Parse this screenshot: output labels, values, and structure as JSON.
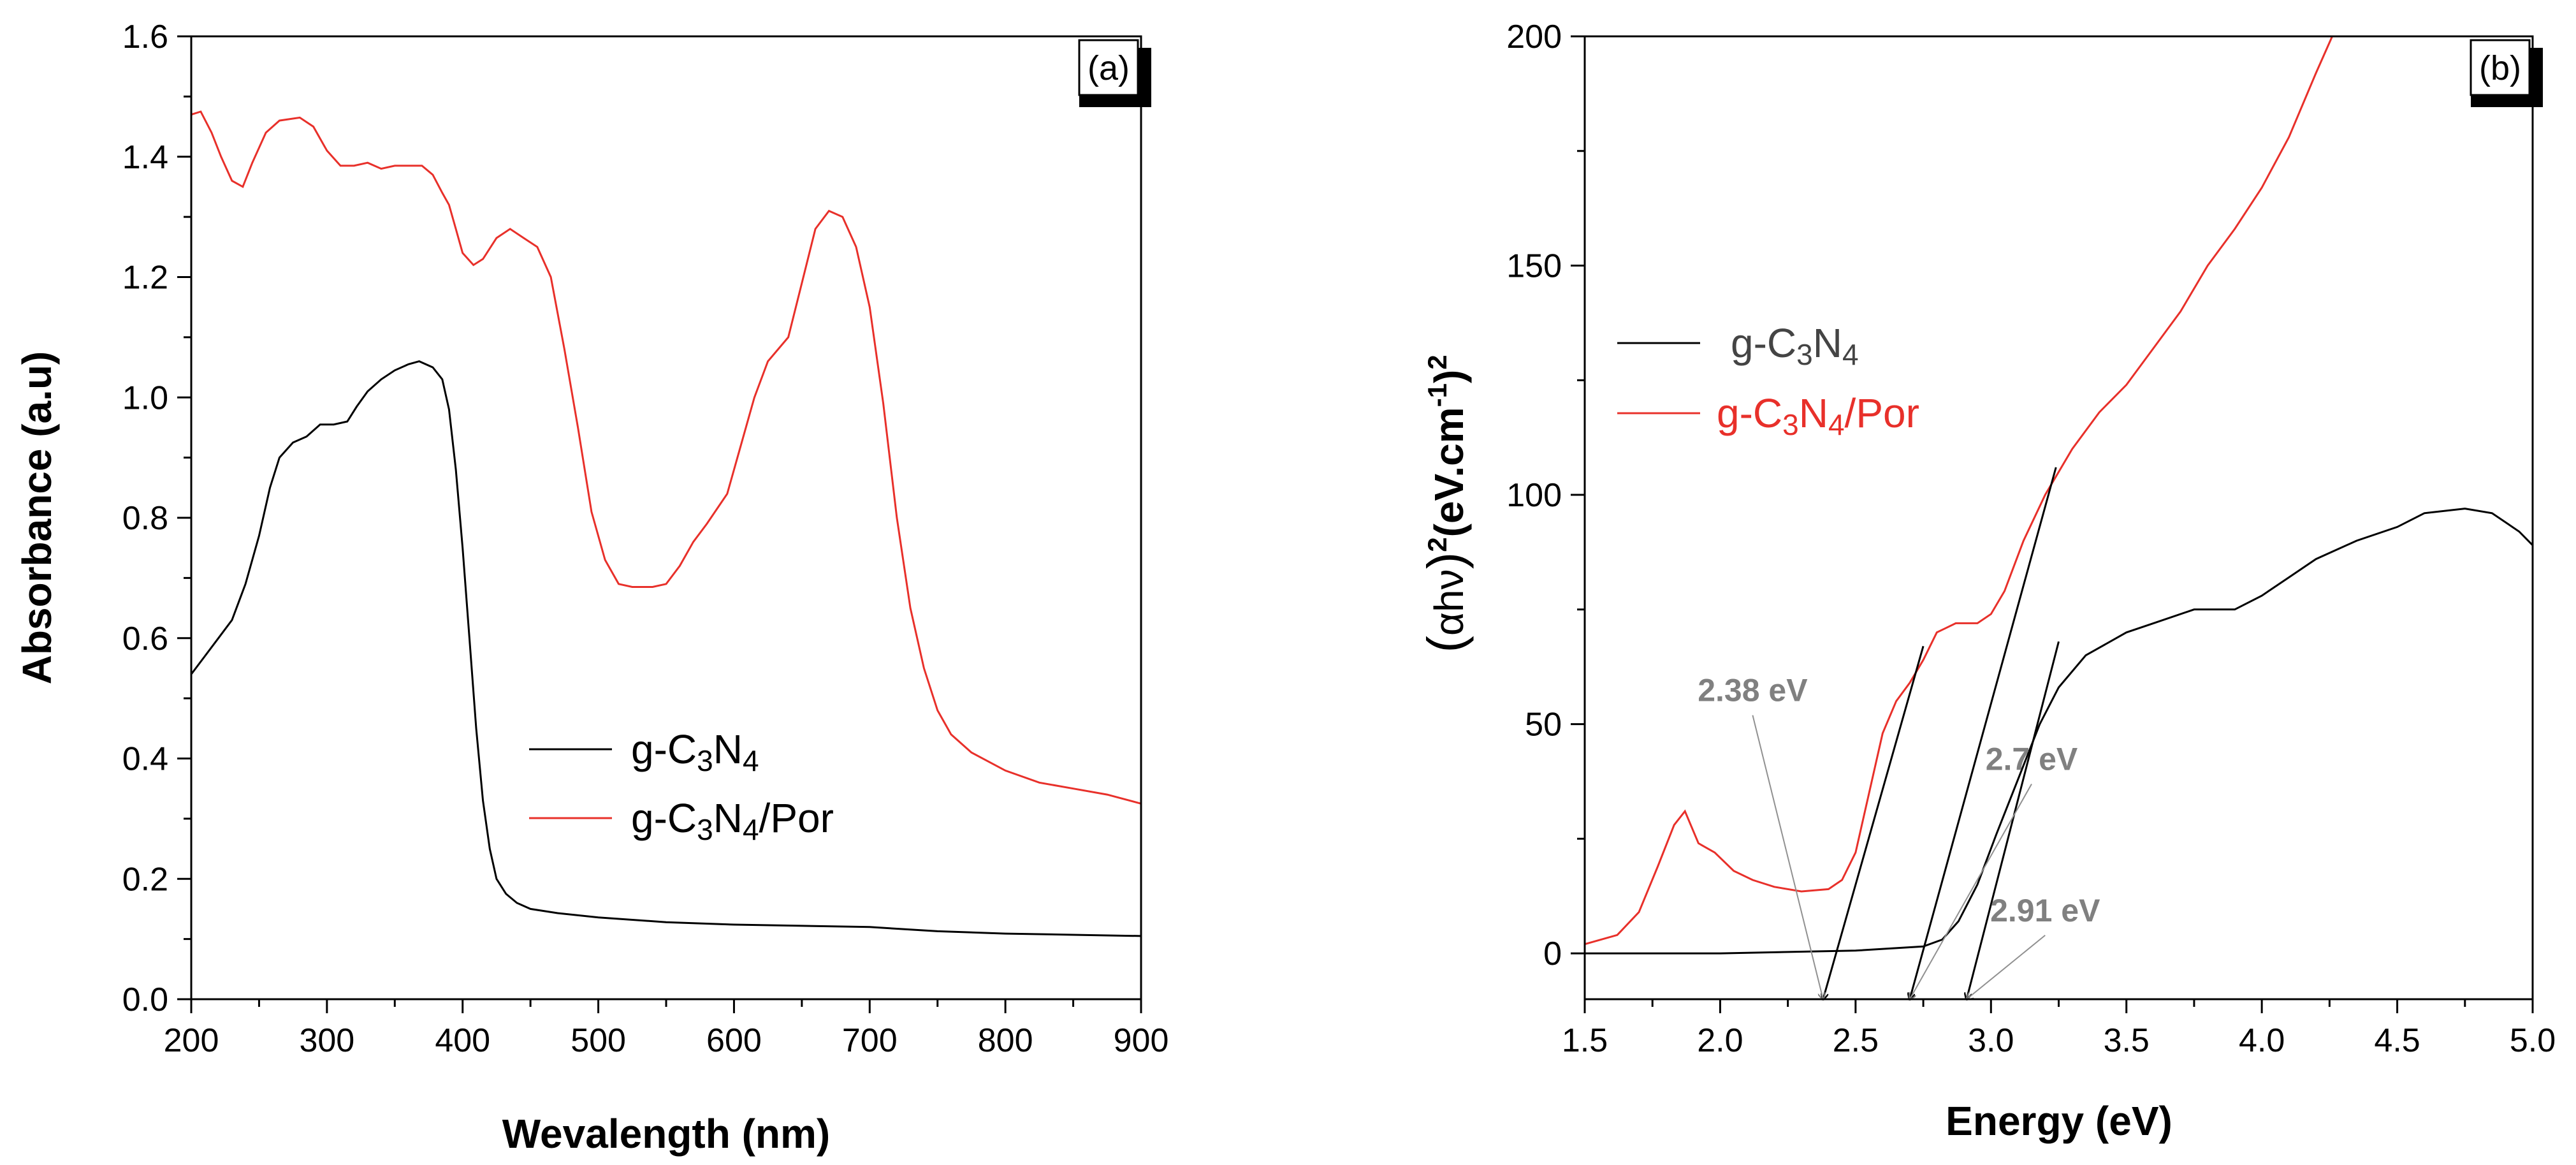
{
  "chart_data": [
    {
      "type": "line",
      "panel_label": "(a)",
      "title": "",
      "xlabel": "Wevalength (nm)",
      "ylabel": "Absorbance (a.u)",
      "xlim": [
        200,
        900
      ],
      "ylim": [
        0.0,
        1.6
      ],
      "x_ticks": [
        200,
        300,
        400,
        500,
        600,
        700,
        800,
        900
      ],
      "y_ticks": [
        0.0,
        0.2,
        0.4,
        0.6,
        0.8,
        1.0,
        1.2,
        1.4,
        1.6
      ],
      "x_tick_labels": [
        "200",
        "300",
        "400",
        "500",
        "600",
        "700",
        "800",
        "900"
      ],
      "y_tick_labels": [
        "0.0",
        "0.2",
        "0.4",
        "0.6",
        "0.8",
        "1.0",
        "1.2",
        "1.4",
        "1.6"
      ],
      "grid": false,
      "legend_position": "center-right",
      "series": [
        {
          "name": "g-C3N4",
          "legend_parts": [
            "g-C",
            "3",
            "N",
            "4",
            ""
          ],
          "color": "#000000",
          "points": [
            [
              200,
              0.54
            ],
            [
              210,
              0.57
            ],
            [
              220,
              0.6
            ],
            [
              230,
              0.63
            ],
            [
              240,
              0.69
            ],
            [
              250,
              0.77
            ],
            [
              258,
              0.85
            ],
            [
              265,
              0.9
            ],
            [
              275,
              0.925
            ],
            [
              285,
              0.935
            ],
            [
              295,
              0.955
            ],
            [
              305,
              0.955
            ],
            [
              315,
              0.96
            ],
            [
              322,
              0.985
            ],
            [
              330,
              1.01
            ],
            [
              340,
              1.03
            ],
            [
              350,
              1.045
            ],
            [
              360,
              1.055
            ],
            [
              368,
              1.06
            ],
            [
              378,
              1.05
            ],
            [
              385,
              1.03
            ],
            [
              390,
              0.98
            ],
            [
              395,
              0.88
            ],
            [
              400,
              0.75
            ],
            [
              405,
              0.6
            ],
            [
              410,
              0.45
            ],
            [
              415,
              0.33
            ],
            [
              420,
              0.25
            ],
            [
              425,
              0.2
            ],
            [
              432,
              0.175
            ],
            [
              440,
              0.16
            ],
            [
              450,
              0.15
            ],
            [
              470,
              0.143
            ],
            [
              500,
              0.136
            ],
            [
              550,
              0.128
            ],
            [
              600,
              0.124
            ],
            [
              650,
              0.122
            ],
            [
              700,
              0.12
            ],
            [
              750,
              0.113
            ],
            [
              800,
              0.109
            ],
            [
              850,
              0.107
            ],
            [
              900,
              0.105
            ]
          ]
        },
        {
          "name": "g-C3N4/Por",
          "legend_parts": [
            "g-C",
            "3",
            "N",
            "4",
            "/Por"
          ],
          "color": "#e8302a",
          "points": [
            [
              200,
              1.47
            ],
            [
              207,
              1.475
            ],
            [
              215,
              1.44
            ],
            [
              222,
              1.4
            ],
            [
              230,
              1.36
            ],
            [
              238,
              1.35
            ],
            [
              245,
              1.39
            ],
            [
              255,
              1.44
            ],
            [
              265,
              1.46
            ],
            [
              280,
              1.465
            ],
            [
              290,
              1.45
            ],
            [
              300,
              1.41
            ],
            [
              310,
              1.385
            ],
            [
              320,
              1.385
            ],
            [
              330,
              1.39
            ],
            [
              340,
              1.38
            ],
            [
              350,
              1.385
            ],
            [
              360,
              1.385
            ],
            [
              370,
              1.385
            ],
            [
              378,
              1.37
            ],
            [
              385,
              1.34
            ],
            [
              390,
              1.32
            ],
            [
              395,
              1.28
            ],
            [
              400,
              1.24
            ],
            [
              408,
              1.22
            ],
            [
              415,
              1.23
            ],
            [
              425,
              1.265
            ],
            [
              435,
              1.28
            ],
            [
              445,
              1.265
            ],
            [
              455,
              1.25
            ],
            [
              465,
              1.2
            ],
            [
              475,
              1.08
            ],
            [
              485,
              0.95
            ],
            [
              495,
              0.81
            ],
            [
              505,
              0.73
            ],
            [
              515,
              0.69
            ],
            [
              525,
              0.685
            ],
            [
              540,
              0.685
            ],
            [
              550,
              0.69
            ],
            [
              560,
              0.72
            ],
            [
              570,
              0.76
            ],
            [
              580,
              0.79
            ],
            [
              595,
              0.84
            ],
            [
              605,
              0.92
            ],
            [
              615,
              1.0
            ],
            [
              625,
              1.06
            ],
            [
              640,
              1.1
            ],
            [
              650,
              1.19
            ],
            [
              660,
              1.28
            ],
            [
              670,
              1.31
            ],
            [
              680,
              1.3
            ],
            [
              690,
              1.25
            ],
            [
              700,
              1.15
            ],
            [
              710,
              0.99
            ],
            [
              720,
              0.8
            ],
            [
              730,
              0.65
            ],
            [
              740,
              0.55
            ],
            [
              750,
              0.48
            ],
            [
              760,
              0.44
            ],
            [
              775,
              0.41
            ],
            [
              800,
              0.38
            ],
            [
              825,
              0.36
            ],
            [
              850,
              0.35
            ],
            [
              875,
              0.34
            ],
            [
              900,
              0.325
            ]
          ]
        }
      ]
    },
    {
      "type": "line",
      "panel_label": "(b)",
      "title": "",
      "xlabel": "Energy (eV)",
      "ylabel_parts": [
        "(",
        "αhν",
        ")",
        "2",
        "(eV.cm",
        "-1",
        ")",
        "2"
      ],
      "xlim": [
        1.5,
        5.0
      ],
      "ylim": [
        -10,
        200
      ],
      "x_ticks": [
        1.5,
        2.0,
        2.5,
        3.0,
        3.5,
        4.0,
        4.5,
        5.0
      ],
      "y_ticks": [
        0,
        50,
        100,
        150,
        200
      ],
      "x_tick_labels": [
        "1.5",
        "2.0",
        "2.5",
        "3.0",
        "3.5",
        "4.0",
        "4.5",
        "5.0"
      ],
      "y_tick_labels": [
        "0",
        "50",
        "100",
        "150",
        "200"
      ],
      "grid": false,
      "legend_position": "upper-left",
      "series": [
        {
          "name": "g-C3N4",
          "legend_parts": [
            "g-C",
            "3",
            "N",
            "4",
            ""
          ],
          "color": "#000000",
          "points": [
            [
              1.5,
              0.0
            ],
            [
              2.0,
              0.0
            ],
            [
              2.5,
              0.6
            ],
            [
              2.75,
              1.5
            ],
            [
              2.82,
              3.0
            ],
            [
              2.88,
              7.0
            ],
            [
              2.95,
              15.0
            ],
            [
              3.02,
              26.0
            ],
            [
              3.1,
              38.0
            ],
            [
              3.18,
              50.0
            ],
            [
              3.25,
              58.0
            ],
            [
              3.35,
              65.0
            ],
            [
              3.5,
              70.0
            ],
            [
              3.6,
              72.0
            ],
            [
              3.75,
              75.0
            ],
            [
              3.9,
              75.0
            ],
            [
              4.0,
              78.0
            ],
            [
              4.1,
              82.0
            ],
            [
              4.2,
              86.0
            ],
            [
              4.35,
              90.0
            ],
            [
              4.5,
              93.0
            ],
            [
              4.6,
              96.0
            ],
            [
              4.75,
              97.0
            ],
            [
              4.85,
              96.0
            ],
            [
              4.95,
              92.0
            ],
            [
              5.0,
              89.0
            ]
          ]
        },
        {
          "name": "g-C3N4/Por",
          "legend_parts": [
            "g-C",
            "3",
            "N",
            "4",
            "/Por"
          ],
          "color": "#e8302a",
          "points": [
            [
              1.5,
              2.0
            ],
            [
              1.62,
              4.0
            ],
            [
              1.7,
              9.0
            ],
            [
              1.77,
              19.0
            ],
            [
              1.83,
              28.0
            ],
            [
              1.87,
              31.0
            ],
            [
              1.92,
              24.0
            ],
            [
              1.98,
              22.0
            ],
            [
              2.05,
              18.0
            ],
            [
              2.12,
              16.0
            ],
            [
              2.2,
              14.5
            ],
            [
              2.3,
              13.5
            ],
            [
              2.4,
              14.0
            ],
            [
              2.45,
              16.0
            ],
            [
              2.5,
              22.0
            ],
            [
              2.55,
              35.0
            ],
            [
              2.6,
              48.0
            ],
            [
              2.65,
              55.0
            ],
            [
              2.7,
              59.0
            ],
            [
              2.75,
              64.0
            ],
            [
              2.8,
              70.0
            ],
            [
              2.87,
              72.0
            ],
            [
              2.95,
              72.0
            ],
            [
              3.0,
              74.0
            ],
            [
              3.05,
              79.0
            ],
            [
              3.12,
              90.0
            ],
            [
              3.2,
              100.0
            ],
            [
              3.3,
              110.0
            ],
            [
              3.4,
              118.0
            ],
            [
              3.5,
              124.0
            ],
            [
              3.6,
              132.0
            ],
            [
              3.7,
              140.0
            ],
            [
              3.8,
              150.0
            ],
            [
              3.9,
              158.0
            ],
            [
              4.0,
              167.0
            ],
            [
              4.1,
              178.0
            ],
            [
              4.2,
              192.0
            ],
            [
              4.26,
              200.0
            ]
          ]
        }
      ],
      "tangent_lines": [
        [
          2.38,
          -10,
          2.75,
          67
        ],
        [
          2.7,
          -10,
          3.24,
          106
        ],
        [
          2.91,
          -10,
          3.25,
          68
        ]
      ],
      "annotations": [
        {
          "text": "2.38 eV",
          "label_at": [
            2.12,
            55
          ],
          "arrow_to": [
            2.38,
            -10
          ]
        },
        {
          "text": "2.7 eV",
          "label_at": [
            3.15,
            40
          ],
          "arrow_to": [
            2.7,
            -10
          ]
        },
        {
          "text": "2.91 eV",
          "label_at": [
            3.2,
            7
          ],
          "arrow_to": [
            2.91,
            -10
          ]
        }
      ]
    }
  ]
}
